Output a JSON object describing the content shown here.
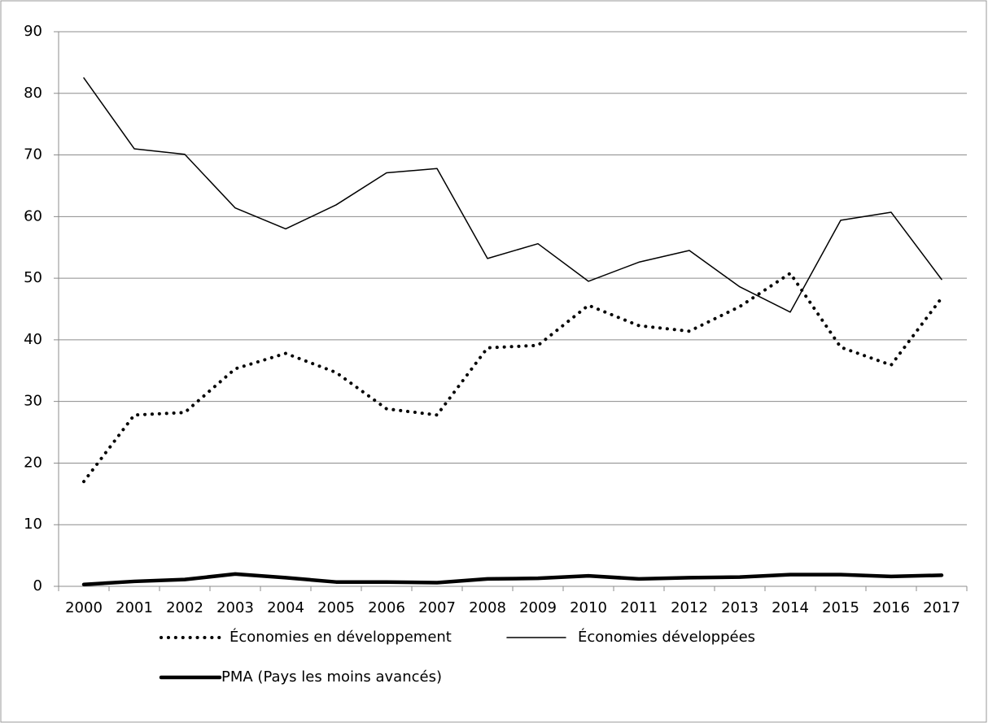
{
  "chart_data": {
    "type": "line",
    "categories": [
      "2000",
      "2001",
      "2002",
      "2003",
      "2004",
      "2005",
      "2006",
      "2007",
      "2008",
      "2009",
      "2010",
      "2011",
      "2012",
      "2013",
      "2014",
      "2015",
      "2016",
      "2017"
    ],
    "series": [
      {
        "name": "Économies en développement",
        "color": "#000000",
        "line_style": "dotted",
        "line_width": 4,
        "values": [
          17,
          27.8,
          28.2,
          35.3,
          37.8,
          34.7,
          28.8,
          27.8,
          38.7,
          39.1,
          45.6,
          42.3,
          41.4,
          45.4,
          50.8,
          38.8,
          35.9,
          46.8
        ]
      },
      {
        "name": "Économies développées",
        "color": "#000000",
        "line_style": "solid",
        "line_width": 1.5,
        "values": [
          82.5,
          71,
          70.1,
          61.4,
          58,
          61.9,
          67.1,
          67.8,
          53.2,
          55.6,
          49.5,
          52.6,
          54.5,
          48.6,
          44.5,
          59.4,
          60.7,
          49.8
        ]
      },
      {
        "name": "PMA (Pays les moins avancés)",
        "color": "#000000",
        "line_style": "solid",
        "line_width": 4.5,
        "values": [
          0.3,
          0.8,
          1.1,
          2.0,
          1.4,
          0.7,
          0.7,
          0.6,
          1.2,
          1.3,
          1.7,
          1.2,
          1.4,
          1.5,
          1.9,
          1.9,
          1.6,
          1.8
        ]
      }
    ],
    "ylim": [
      0,
      90
    ],
    "yticks": [
      0,
      10,
      20,
      30,
      40,
      50,
      60,
      70,
      80,
      90
    ],
    "grid": true,
    "legend": "bottom"
  }
}
